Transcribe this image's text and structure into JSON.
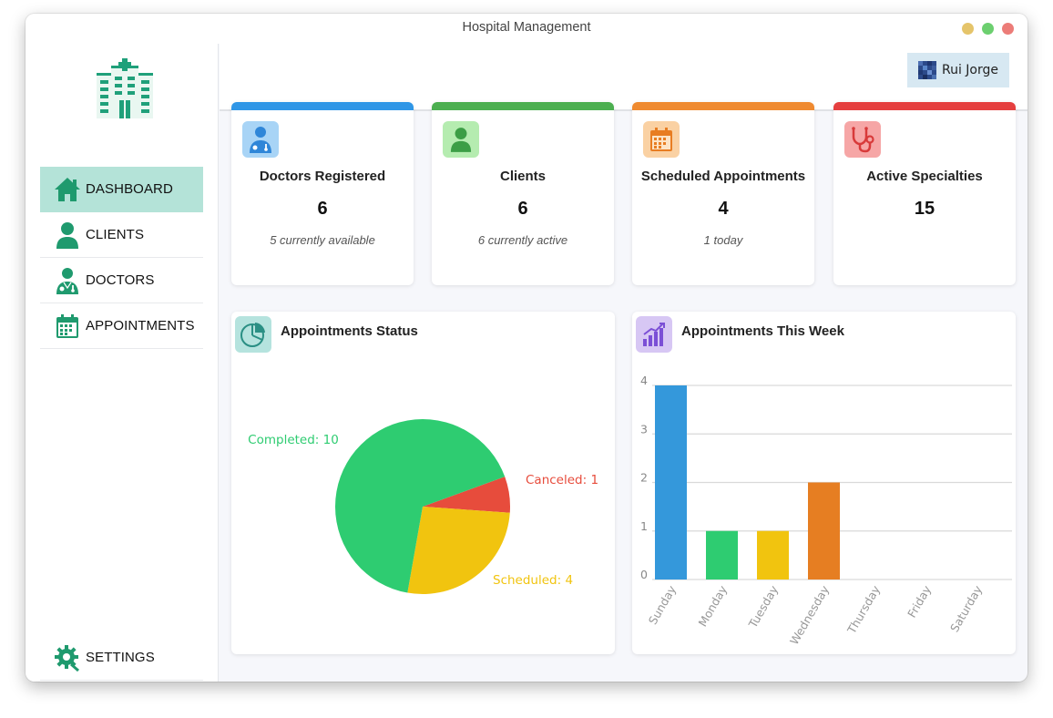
{
  "window": {
    "title": "Hospital Management"
  },
  "sidebar": {
    "items": [
      {
        "label": "DASHBOARD",
        "icon": "home-icon",
        "active": true
      },
      {
        "label": "CLIENTS",
        "icon": "user-icon",
        "active": false
      },
      {
        "label": "DOCTORS",
        "icon": "doctor-icon",
        "active": false
      },
      {
        "label": "APPOINTMENTS",
        "icon": "calendar-icon",
        "active": false
      }
    ],
    "settings": {
      "label": "SETTINGS",
      "icon": "gear-icon"
    }
  },
  "topbar": {
    "user_name": "Rui Jorge"
  },
  "cards": [
    {
      "title": "Doctors Registered",
      "value": "6",
      "subtitle": "5 currently available",
      "color": "#2f96e6",
      "icon": "doctor-icon"
    },
    {
      "title": "Clients",
      "value": "6",
      "subtitle": "6 currently active",
      "color": "#4caf50",
      "icon": "user-icon"
    },
    {
      "title": "Scheduled Appointments",
      "value": "4",
      "subtitle": "1 today",
      "color": "#ef8a30",
      "icon": "calendar-icon"
    },
    {
      "title": "Active Specialties",
      "value": "15",
      "subtitle": "",
      "color": "#e53f3f",
      "icon": "stethoscope-icon"
    }
  ],
  "panels": {
    "status": {
      "title": "Appointments Status",
      "icon": "pie-chart-icon"
    },
    "week": {
      "title": "Appointments This Week",
      "icon": "bar-chart-icon"
    }
  },
  "chart_data": [
    {
      "type": "pie",
      "slices": [
        {
          "label": "Completed: 10",
          "name": "Completed",
          "value": 10,
          "color": "#2ecc71"
        },
        {
          "label": "Canceled: 1",
          "name": "Canceled",
          "value": 1,
          "color": "#e74c3c"
        },
        {
          "label": "Scheduled: 4",
          "name": "Scheduled",
          "value": 4,
          "color": "#f1c40f"
        }
      ]
    },
    {
      "type": "bar",
      "categories": [
        "Sunday",
        "Monday",
        "Tuesday",
        "Wednesday",
        "Thursday",
        "Friday",
        "Saturday"
      ],
      "values": [
        4,
        1,
        1,
        2,
        0,
        0,
        0
      ],
      "colors": [
        "#3498db",
        "#2ecc71",
        "#f1c40f",
        "#e67e22"
      ],
      "ylim": [
        0,
        4
      ],
      "yticks": [
        "0",
        "1",
        "2",
        "3",
        "4"
      ],
      "grid": true,
      "legend": "none"
    }
  ]
}
